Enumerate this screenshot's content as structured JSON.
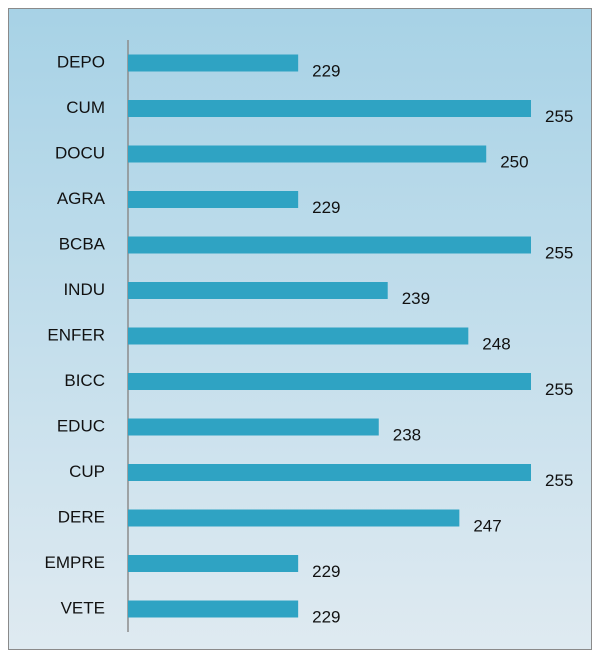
{
  "chart_data": {
    "type": "bar",
    "orientation": "horizontal",
    "categories": [
      "DEPO",
      "CUM",
      "DOCU",
      "AGRA",
      "BCBA",
      "INDU",
      "ENFER",
      "BICC",
      "EDUC",
      "CUP",
      "DERE",
      "EMPRE",
      "VETE"
    ],
    "values": [
      229,
      255,
      250,
      229,
      255,
      239,
      248,
      255,
      238,
      255,
      247,
      229,
      229
    ],
    "color": "#2fa3c3",
    "xlim": [
      210,
      255
    ]
  }
}
